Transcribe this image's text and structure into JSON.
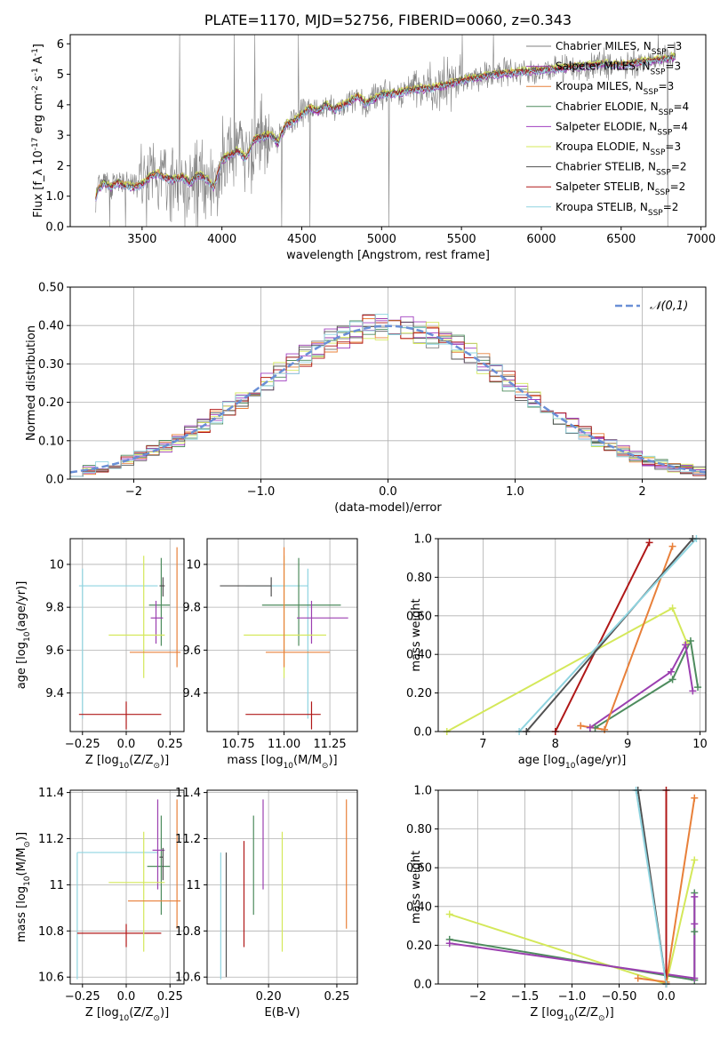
{
  "chart_data": [
    {
      "type": "line",
      "title": "PLATE=1170, MJD=52756, FIBERID=0060, z=0.343",
      "xlabel": "wavelength [Angstrom, rest frame]",
      "ylabel": "Flux [f_λ 10^-17 erg cm^-2 s^-1 A^-1]",
      "xlim": [
        3050,
        7030
      ],
      "ylim": [
        0,
        6.3
      ],
      "xticks": [
        3500,
        4000,
        4500,
        5000,
        5500,
        6000,
        6500,
        7000
      ],
      "yticks": [
        0,
        1,
        2,
        3,
        4,
        5,
        6
      ],
      "grid": false,
      "legend_position": "top-right",
      "data_color": "#808080",
      "model_x": [
        3210,
        3230,
        3260,
        3300,
        3350,
        3400,
        3450,
        3500,
        3550,
        3600,
        3650,
        3700,
        3750,
        3800,
        3850,
        3900,
        3950,
        4000,
        4050,
        4100,
        4150,
        4200,
        4250,
        4300,
        4350,
        4400,
        4450,
        4500,
        4550,
        4600,
        4650,
        4700,
        4750,
        4800,
        4850,
        4900,
        4950,
        5000,
        5100,
        5200,
        5300,
        5400,
        5500,
        5600,
        5700,
        5800,
        5900,
        6000,
        6100,
        6200,
        6300,
        6400,
        6500,
        6600,
        6700,
        6800,
        6840
      ],
      "model_y": [
        1.0,
        1.25,
        1.45,
        1.3,
        1.45,
        1.35,
        1.3,
        1.4,
        1.65,
        1.75,
        1.6,
        1.55,
        1.65,
        1.45,
        1.7,
        1.6,
        1.3,
        2.2,
        2.35,
        2.5,
        2.25,
        2.85,
        2.95,
        3.05,
        2.75,
        3.35,
        3.45,
        3.7,
        3.9,
        3.8,
        4.0,
        3.85,
        3.95,
        4.1,
        4.3,
        4.05,
        4.2,
        4.35,
        4.4,
        4.5,
        4.55,
        4.65,
        4.8,
        4.9,
        5.0,
        5.05,
        5.1,
        5.15,
        5.2,
        5.25,
        5.3,
        5.35,
        5.3,
        5.4,
        5.45,
        5.55,
        5.6
      ],
      "series": [
        {
          "name": "Chabrier MILES, N_SSP=3",
          "color": "#808080"
        },
        {
          "name": "Salpeter MILES, N_SSP=3",
          "color": "#9b3fb0"
        },
        {
          "name": "Kroupa MILES, N_SSP=3",
          "color": "#e8803a"
        },
        {
          "name": "Chabrier ELODIE, N_SSP=4",
          "color": "#4e8c5e"
        },
        {
          "name": "Salpeter ELODIE, N_SSP=4",
          "color": "#a03fc0"
        },
        {
          "name": "Kroupa ELODIE, N_SSP=3",
          "color": "#d4e85a"
        },
        {
          "name": "Chabrier STELIB, N_SSP=2",
          "color": "#505050"
        },
        {
          "name": "Salpeter STELIB, N_SSP=2",
          "color": "#b01818"
        },
        {
          "name": "Kroupa STELIB, N_SSP=2",
          "color": "#8fd4e0"
        }
      ]
    },
    {
      "type": "line",
      "xlabel": "(data-model)/error",
      "ylabel": "Normed distribution",
      "xlim": [
        -2.5,
        2.5
      ],
      "ylim": [
        0,
        0.5
      ],
      "xticks": [
        -2,
        -1,
        0,
        1,
        2
      ],
      "yticks": [
        0.0,
        0.1,
        0.2,
        0.3,
        0.4,
        0.5
      ],
      "grid": true,
      "legend_position": "top-right",
      "series": [
        {
          "name": "𝒩(0,1)",
          "style": "dashed",
          "color": "#6a8fd6"
        }
      ]
    },
    {
      "type": "scatter",
      "xlabel": "Z [log10(Z/Z⊙)]",
      "ylabel": "age  [log10(age/yr)]",
      "xlim": [
        -0.32,
        0.33
      ],
      "ylim": [
        9.22,
        10.12
      ],
      "xticks": [
        -0.25,
        0.0,
        0.25
      ],
      "yticks": [
        9.4,
        9.6,
        9.8,
        10.0
      ],
      "grid": true,
      "errorbars": [
        {
          "color": "#8fd4e0",
          "x": -0.25,
          "xerr": [
            0.02,
            0.43
          ],
          "y": 9.9,
          "yerr": [
            0.62,
            0.08
          ]
        },
        {
          "color": "#b01818",
          "x": 0.0,
          "xerr": [
            0.27,
            0.2
          ],
          "y": 9.3,
          "yerr": [
            0.07,
            0.06
          ]
        },
        {
          "color": "#4e8c5e",
          "x": 0.2,
          "xerr": [
            0.07,
            0.05
          ],
          "y": 9.81,
          "yerr": [
            0.19,
            0.22
          ]
        },
        {
          "color": "#9b3fb0",
          "x": 0.17,
          "xerr": [
            0.03,
            0.04
          ],
          "y": 9.75,
          "yerr": [
            0.12,
            0.08
          ]
        },
        {
          "color": "#d4e85a",
          "x": 0.1,
          "xerr": [
            0.2,
            0.12
          ],
          "y": 9.67,
          "yerr": [
            0.2,
            0.37
          ]
        },
        {
          "color": "#e8803a",
          "x": 0.29,
          "xerr": [
            0.27,
            0.02
          ],
          "y": 9.59,
          "yerr": [
            0.07,
            0.49
          ]
        },
        {
          "color": "#505050",
          "x": 0.21,
          "xerr": [
            0.02,
            0.01
          ],
          "y": 9.9,
          "yerr": [
            0.05,
            0.04
          ]
        }
      ]
    },
    {
      "type": "scatter",
      "xlabel": "mass [log10(M/M⊙)]",
      "ylabel": "",
      "xlim": [
        10.58,
        11.4
      ],
      "ylim": [
        9.22,
        10.12
      ],
      "xticks": [
        10.75,
        11.0,
        11.25
      ],
      "xticklabels": [
        "10.75",
        "11.00",
        "11.25"
      ],
      "yticks": [
        9.4,
        9.6,
        9.8,
        10.0
      ],
      "grid": true,
      "errorbars": [
        {
          "color": "#8fd4e0",
          "x": 11.13,
          "xerr": [
            0.34,
            0.0
          ],
          "y": 9.9,
          "yerr": [
            0.62,
            0.08
          ]
        },
        {
          "color": "#b01818",
          "x": 11.15,
          "xerr": [
            0.36,
            0.05
          ],
          "y": 9.3,
          "yerr": [
            0.07,
            0.06
          ]
        },
        {
          "color": "#4e8c5e",
          "x": 11.08,
          "xerr": [
            0.2,
            0.23
          ],
          "y": 9.81,
          "yerr": [
            0.19,
            0.22
          ]
        },
        {
          "color": "#9b3fb0",
          "x": 11.15,
          "xerr": [
            0.08,
            0.2
          ],
          "y": 9.75,
          "yerr": [
            0.12,
            0.08
          ]
        },
        {
          "color": "#d4e85a",
          "x": 11.0,
          "xerr": [
            0.22,
            0.23
          ],
          "y": 9.67,
          "yerr": [
            0.2,
            0.37
          ]
        },
        {
          "color": "#e8803a",
          "x": 11.0,
          "xerr": [
            0.1,
            0.25
          ],
          "y": 9.59,
          "yerr": [
            0.07,
            0.49
          ]
        },
        {
          "color": "#505050",
          "x": 10.93,
          "xerr": [
            0.28,
            0.0
          ],
          "y": 9.9,
          "yerr": [
            0.05,
            0.04
          ]
        }
      ]
    },
    {
      "type": "line",
      "xlabel": "age  [log10(age/yr)]",
      "ylabel": "mass weight",
      "xlim": [
        6.38,
        10.08
      ],
      "ylim": [
        0,
        1
      ],
      "xticks": [
        7,
        8,
        9,
        10
      ],
      "yticks": [
        0.0,
        0.2,
        0.4,
        0.6,
        0.8,
        1.0
      ],
      "grid": true,
      "series": [
        {
          "color": "#d4e85a",
          "x": [
            6.5,
            9.62,
            9.82
          ],
          "y": [
            0.0,
            0.64,
            0.46
          ]
        },
        {
          "color": "#4e8c5e",
          "x": [
            8.55,
            9.62,
            9.87,
            9.97
          ],
          "y": [
            0.02,
            0.27,
            0.47,
            0.23
          ]
        },
        {
          "color": "#9b3fb0",
          "x": [
            8.48,
            9.6,
            9.8,
            9.9
          ],
          "y": [
            0.02,
            0.31,
            0.45,
            0.21
          ]
        },
        {
          "color": "#e8803a",
          "x": [
            8.35,
            8.68,
            9.62
          ],
          "y": [
            0.03,
            0.01,
            0.96
          ]
        },
        {
          "color": "#b01818",
          "x": [
            8.0,
            9.3
          ],
          "y": [
            0.0,
            0.98
          ]
        },
        {
          "color": "#505050",
          "x": [
            7.6,
            9.9
          ],
          "y": [
            0.0,
            1.0
          ]
        },
        {
          "color": "#8fd4e0",
          "x": [
            7.5,
            9.95
          ],
          "y": [
            0.0,
            1.0
          ]
        }
      ]
    },
    {
      "type": "scatter",
      "xlabel": "Z [log10(Z/Z⊙)]",
      "ylabel": "mass [log10(M/M⊙)]",
      "xlim": [
        -0.32,
        0.33
      ],
      "ylim": [
        10.57,
        11.41
      ],
      "xticks": [
        -0.25,
        0.0,
        0.25
      ],
      "yticks": [
        10.6,
        10.8,
        11.0,
        11.2,
        11.4
      ],
      "grid": true,
      "errorbars": [
        {
          "color": "#8fd4e0",
          "x": -0.28,
          "xerr": [
            0.0,
            0.46
          ],
          "y": 11.14,
          "yerr": [
            0.55,
            0.0
          ]
        },
        {
          "color": "#b01818",
          "x": 0.0,
          "xerr": [
            0.28,
            0.2
          ],
          "y": 10.79,
          "yerr": [
            0.06,
            0.04
          ]
        },
        {
          "color": "#4e8c5e",
          "x": 0.2,
          "xerr": [
            0.08,
            0.05
          ],
          "y": 11.08,
          "yerr": [
            0.21,
            0.22
          ]
        },
        {
          "color": "#9b3fb0",
          "x": 0.18,
          "xerr": [
            0.03,
            0.04
          ],
          "y": 11.15,
          "yerr": [
            0.17,
            0.22
          ]
        },
        {
          "color": "#d4e85a",
          "x": 0.1,
          "xerr": [
            0.2,
            0.12
          ],
          "y": 11.01,
          "yerr": [
            0.3,
            0.22
          ]
        },
        {
          "color": "#e8803a",
          "x": 0.29,
          "xerr": [
            0.28,
            0.02
          ],
          "y": 10.93,
          "yerr": [
            0.12,
            0.44
          ]
        },
        {
          "color": "#505050",
          "x": 0.21,
          "xerr": [
            0.02,
            0.0
          ],
          "y": 11.12,
          "yerr": [
            0.1,
            0.04
          ]
        }
      ]
    },
    {
      "type": "scatter",
      "xlabel": "E(B-V)",
      "ylabel": "",
      "xlim": [
        0.155,
        0.265
      ],
      "ylim": [
        10.57,
        11.41
      ],
      "xticks": [
        0.15,
        0.2,
        0.25
      ],
      "yticks": [
        10.6,
        10.8,
        11.0,
        11.2,
        11.4
      ],
      "grid": true,
      "errorbars": [
        {
          "color": "#8fd4e0",
          "x": 0.165,
          "y": 11.14,
          "yerr": [
            0.55,
            0.0
          ]
        },
        {
          "color": "#505050",
          "x": 0.169,
          "y": 11.12,
          "yerr": [
            0.52,
            0.02
          ]
        },
        {
          "color": "#b01818",
          "x": 0.182,
          "y": 11.0,
          "yerr": [
            0.27,
            0.19
          ]
        },
        {
          "color": "#4e8c5e",
          "x": 0.189,
          "y": 11.08,
          "yerr": [
            0.21,
            0.22
          ]
        },
        {
          "color": "#9b3fb0",
          "x": 0.196,
          "y": 11.15,
          "yerr": [
            0.17,
            0.22
          ]
        },
        {
          "color": "#d4e85a",
          "x": 0.21,
          "y": 11.01,
          "yerr": [
            0.3,
            0.22
          ]
        },
        {
          "color": "#e8803a",
          "x": 0.257,
          "y": 10.93,
          "yerr": [
            0.12,
            0.44
          ]
        }
      ]
    },
    {
      "type": "line",
      "xlabel": "Z [log10(Z/Z⊙)]",
      "ylabel": "mass weight",
      "xlim": [
        -2.42,
        0.42
      ],
      "ylim": [
        0,
        1
      ],
      "xticks": [
        -2.0,
        -1.5,
        -1.0,
        -0.5,
        0.0
      ],
      "yticks": [
        0.0,
        0.2,
        0.4,
        0.6,
        0.8,
        1.0
      ],
      "grid": true,
      "series": [
        {
          "color": "#d4e85a",
          "x": [
            -2.3,
            0.0,
            0.3
          ],
          "y": [
            0.36,
            0.0,
            0.64
          ]
        },
        {
          "color": "#4e8c5e",
          "x": [
            -2.3,
            0.3,
            0.3,
            0.3
          ],
          "y": [
            0.23,
            0.02,
            0.27,
            0.47
          ]
        },
        {
          "color": "#9b3fb0",
          "x": [
            -2.3,
            0.3,
            0.3,
            0.3
          ],
          "y": [
            0.21,
            0.03,
            0.31,
            0.45
          ]
        },
        {
          "color": "#e8803a",
          "x": [
            -0.3,
            0.0,
            0.3
          ],
          "y": [
            0.03,
            0.01,
            0.96
          ]
        },
        {
          "color": "#b01818",
          "x": [
            0.0,
            0.0
          ],
          "y": [
            1.0,
            0.0
          ]
        },
        {
          "color": "#505050",
          "x": [
            -0.3,
            0.0
          ],
          "y": [
            1.0,
            0.0
          ]
        },
        {
          "color": "#8fd4e0",
          "x": [
            -0.32,
            0.0
          ],
          "y": [
            1.0,
            0.0
          ]
        }
      ]
    }
  ]
}
